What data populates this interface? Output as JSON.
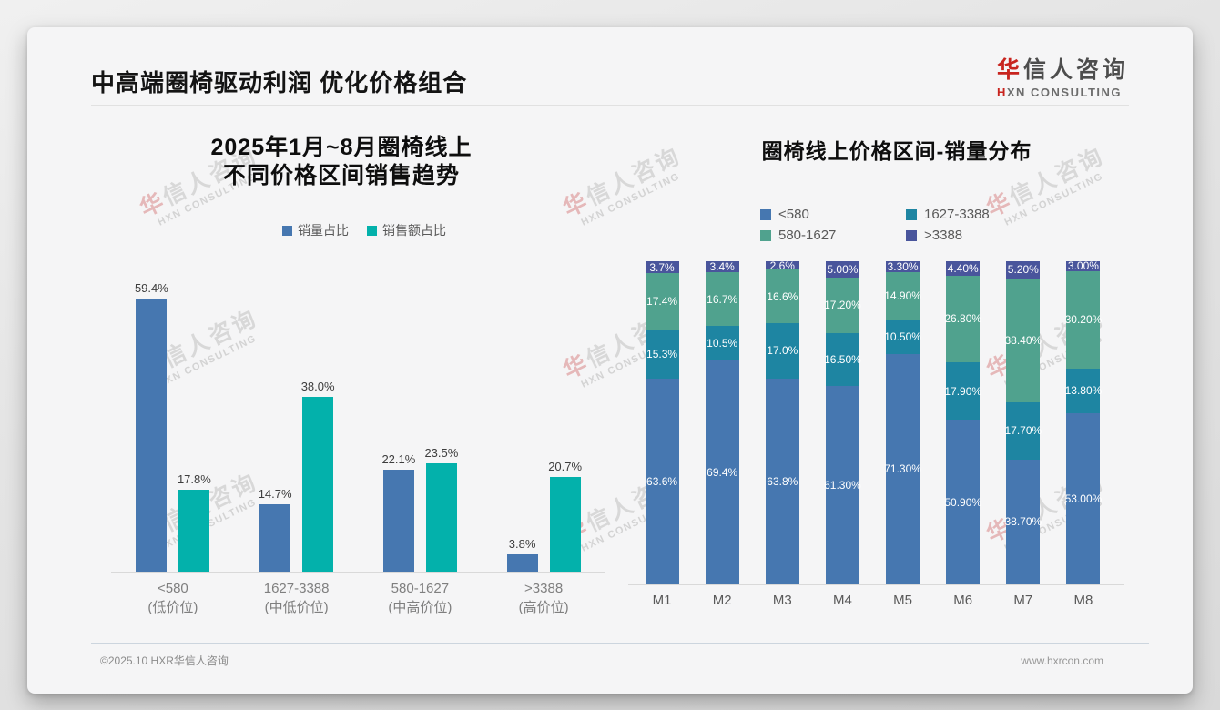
{
  "page": {
    "title": "中高端圈椅驱动利润 优化价格组合",
    "footer_left": "©2025.10 HXR华信人咨询",
    "footer_right": "www.hxrcon.com"
  },
  "logo": {
    "cn_first": "华",
    "cn_rest": "信人咨询",
    "en_first": "H",
    "en_rest": "XN CONSULTING"
  },
  "watermark": {
    "line1_first": "华",
    "line1_rest": "信人咨询",
    "line2": "HXN CONSULTING"
  },
  "chart_data": [
    {
      "type": "bar",
      "title": "2025年1月~8月圈椅线上 不同价格区间销售趋势",
      "title_line1": "2025年1月~8月圈椅线上",
      "title_line2": "不同价格区间销售趋势",
      "categories": [
        "<580",
        "1627-3388",
        "580-1627",
        ">3388"
      ],
      "category_sublabels": [
        "(低价位)",
        "(中低价位)",
        "(中高价位)",
        "(高价位)"
      ],
      "series": [
        {
          "name": "销量占比",
          "color": "#4677b0",
          "values": [
            59.4,
            14.7,
            22.1,
            3.8
          ],
          "labels": [
            "59.4%",
            "14.7%",
            "22.1%",
            "3.8%"
          ]
        },
        {
          "name": "销售额占比",
          "color": "#03b1ab",
          "values": [
            17.8,
            38.0,
            23.5,
            20.7
          ],
          "labels": [
            "17.8%",
            "38.0%",
            "23.5%",
            "20.7%"
          ]
        }
      ],
      "xlabel": "",
      "ylabel": "",
      "unit": "%",
      "ylim": [
        0,
        65
      ],
      "grid": false,
      "legend_position": "top"
    },
    {
      "type": "bar",
      "subtype": "stacked",
      "title": "圈椅线上价格区间-销量分布",
      "categories": [
        "M1",
        "M2",
        "M3",
        "M4",
        "M5",
        "M6",
        "M7",
        "M8"
      ],
      "series": [
        {
          "name": "<580",
          "color": "#4677b0",
          "values": [
            63.6,
            69.4,
            63.8,
            61.3,
            71.3,
            50.9,
            38.7,
            53.0
          ],
          "labels": [
            "63.6%",
            "69.4%",
            "63.8%",
            "61.30%",
            "71.30%",
            "50.90%",
            "38.70%",
            "53.00%"
          ]
        },
        {
          "name": "1627-3388",
          "color": "#1e85a2",
          "values": [
            15.3,
            10.5,
            17.0,
            16.5,
            10.5,
            17.9,
            17.7,
            13.8
          ],
          "labels": [
            "15.3%",
            "10.5%",
            "17.0%",
            "16.50%",
            "10.50%",
            "17.90%",
            "17.70%",
            "13.80%"
          ]
        },
        {
          "name": "580-1627",
          "color": "#50a28e",
          "values": [
            17.4,
            16.7,
            16.6,
            17.2,
            14.9,
            26.8,
            38.4,
            30.2
          ],
          "labels": [
            "17.4%",
            "16.7%",
            "16.6%",
            "17.20%",
            "14.90%",
            "26.80%",
            "38.40%",
            "30.20%"
          ]
        },
        {
          "name": ">3388",
          "color": "#49559c",
          "values": [
            3.7,
            3.4,
            2.6,
            5.0,
            3.3,
            4.4,
            5.2,
            3.0
          ],
          "labels": [
            "3.7%",
            "3.4%",
            "2.6%",
            "5.00%",
            "3.30%",
            "4.40%",
            "5.20%",
            "3.00%"
          ]
        }
      ],
      "stack_order": "bottom to top: <580, 1627-3388, 580-1627, >3388",
      "xlabel": "",
      "ylabel": "",
      "unit": "%",
      "ylim": [
        0,
        100
      ],
      "grid": false,
      "legend_position": "top"
    }
  ]
}
